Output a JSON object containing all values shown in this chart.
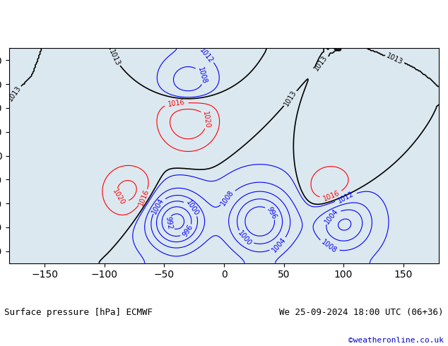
{
  "title_left": "Surface pressure [hPa] ECMWF",
  "title_right": "We 25-09-2024 18:00 UTC (06+36)",
  "copyright": "©weatheronline.co.uk",
  "bg_color": "#ffffff",
  "map_bg": "#e8e8e8",
  "land_color": "#c8e6c9",
  "ocean_color": "#e0e8f0",
  "contour_interval": 4,
  "pressure_min": 960,
  "pressure_max": 1040,
  "label_fontsize": 7,
  "title_fontsize": 9,
  "copyright_color": "#0000cc"
}
